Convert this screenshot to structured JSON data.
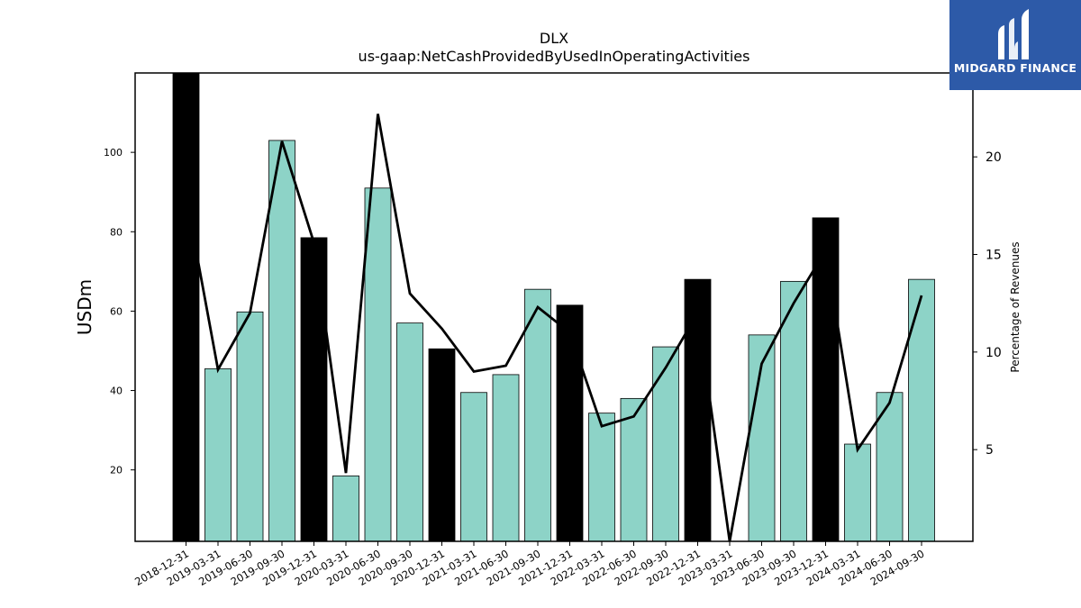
{
  "chart_data": {
    "type": "bar+line",
    "title": "DLX",
    "subtitle": "us-gaap:NetCashProvidedByUsedInOperatingActivities",
    "ylabel": "USDm",
    "y2label": "Percentage of Revenues",
    "ylim": [
      2,
      120
    ],
    "y2lim": [
      0.3,
      24.3
    ],
    "yticks": [
      20,
      40,
      60,
      80,
      100
    ],
    "y2ticks": [
      5,
      10,
      15,
      20
    ],
    "categories": [
      "2018-12-31",
      "2019-03-31",
      "2019-06-30",
      "2019-09-30",
      "2019-12-31",
      "2020-03-31",
      "2020-06-30",
      "2020-09-30",
      "2020-12-31",
      "2021-03-31",
      "2021-06-30",
      "2021-09-30",
      "2021-12-31",
      "2022-03-31",
      "2022-06-30",
      "2022-09-30",
      "2022-12-31",
      "2023-03-31",
      "2023-06-30",
      "2023-09-30",
      "2023-12-31",
      "2024-03-31",
      "2024-06-30",
      "2024-09-30"
    ],
    "series": [
      {
        "kind": "bar",
        "values": [
          120,
          45.5,
          59.8,
          103,
          78.5,
          18.5,
          91,
          57,
          50.5,
          39.5,
          44,
          65.5,
          61.5,
          34.3,
          38,
          51,
          68,
          0,
          54,
          67.5,
          83.5,
          26.5,
          39.5,
          68
        ],
        "colors": [
          "#000000",
          "#8dd3c7",
          "#8dd3c7",
          "#8dd3c7",
          "#000000",
          "#8dd3c7",
          "#8dd3c7",
          "#8dd3c7",
          "#000000",
          "#8dd3c7",
          "#8dd3c7",
          "#8dd3c7",
          "#000000",
          "#8dd3c7",
          "#8dd3c7",
          "#8dd3c7",
          "#000000",
          "#8dd3c7",
          "#8dd3c7",
          "#8dd3c7",
          "#000000",
          "#8dd3c7",
          "#8dd3c7",
          "#8dd3c7"
        ]
      },
      {
        "kind": "line",
        "axis": "right",
        "color": "#000000",
        "values": [
          18,
          9.1,
          12,
          20.8,
          15.6,
          3.8,
          22.2,
          13,
          11.2,
          9,
          9.3,
          12.3,
          11,
          6.2,
          6.7,
          9.2,
          12,
          0,
          9.4,
          12.5,
          15.2,
          5,
          7.4,
          12.9
        ]
      }
    ]
  },
  "brand": {
    "name": "MIDGARD FINANCE",
    "icon": "midgard-logo-icon",
    "color": "#2d5aa8"
  }
}
